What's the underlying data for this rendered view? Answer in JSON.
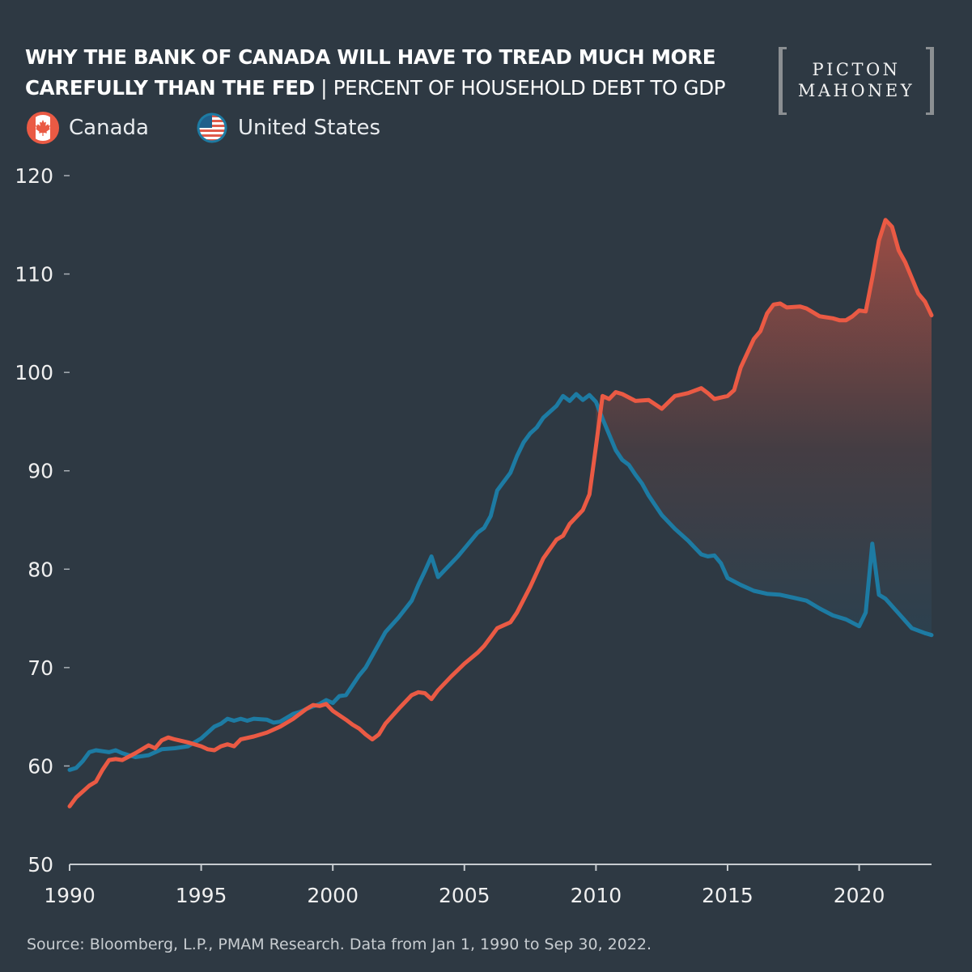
{
  "header": {
    "title_bold_1": "WHY THE BANK OF CANADA WILL HAVE TO TREAD MUCH MORE",
    "title_bold_2": "CAREFULLY THAN THE FED",
    "title_separator": " | ",
    "subtitle": "PERCENT OF HOUSEHOLD DEBT TO GDP"
  },
  "logo": {
    "line1": "PICTON",
    "line2": "MAHONEY"
  },
  "legend": [
    {
      "label": "Canada",
      "icon": "canada-flag-icon",
      "color": "#ea5a44"
    },
    {
      "label": "United States",
      "icon": "us-flag-icon",
      "color": "#1d7ba3"
    }
  ],
  "source": "Source: Bloomberg, L.P., PMAM Research. Data from Jan 1, 1990 to Sep 30, 2022.",
  "colors": {
    "background": "#2e3943",
    "canada": "#ea5a44",
    "us": "#1d7ba3"
  },
  "chart_data": {
    "type": "line",
    "title": "",
    "xlabel": "",
    "ylabel": "",
    "xlim": [
      1990,
      2022.75
    ],
    "ylim": [
      50,
      120
    ],
    "x_ticks": [
      1990,
      1995,
      2000,
      2005,
      2010,
      2015,
      2020
    ],
    "y_ticks": [
      50,
      60,
      70,
      80,
      90,
      100,
      110,
      120
    ],
    "grid": false,
    "legend_position": "top-left",
    "shaded_gap": {
      "from": 2010,
      "to": 2022.75,
      "description": "area between Canada and US lines"
    },
    "series": [
      {
        "name": "Canada",
        "color": "#ea5a44",
        "points": [
          [
            1990.0,
            55.9
          ],
          [
            1990.25,
            56.8
          ],
          [
            1990.5,
            57.4
          ],
          [
            1990.75,
            58.0
          ],
          [
            1991.0,
            58.4
          ],
          [
            1991.25,
            59.6
          ],
          [
            1991.5,
            60.6
          ],
          [
            1991.75,
            60.7
          ],
          [
            1992.0,
            60.6
          ],
          [
            1992.5,
            61.3
          ],
          [
            1993.0,
            62.1
          ],
          [
            1993.25,
            61.8
          ],
          [
            1993.5,
            62.6
          ],
          [
            1993.75,
            62.9
          ],
          [
            1994.0,
            62.7
          ],
          [
            1994.5,
            62.4
          ],
          [
            1995.0,
            62.0
          ],
          [
            1995.25,
            61.7
          ],
          [
            1995.5,
            61.6
          ],
          [
            1995.75,
            62.0
          ],
          [
            1996.0,
            62.2
          ],
          [
            1996.25,
            62.0
          ],
          [
            1996.5,
            62.7
          ],
          [
            1997.0,
            63.0
          ],
          [
            1997.5,
            63.4
          ],
          [
            1998.0,
            64.0
          ],
          [
            1998.5,
            64.8
          ],
          [
            1999.0,
            65.8
          ],
          [
            1999.25,
            66.2
          ],
          [
            1999.5,
            66.1
          ],
          [
            1999.75,
            66.3
          ],
          [
            2000.0,
            65.6
          ],
          [
            2000.5,
            64.7
          ],
          [
            2000.75,
            64.2
          ],
          [
            2001.0,
            63.8
          ],
          [
            2001.25,
            63.2
          ],
          [
            2001.5,
            62.7
          ],
          [
            2001.75,
            63.2
          ],
          [
            2002.0,
            64.3
          ],
          [
            2002.5,
            65.8
          ],
          [
            2003.0,
            67.2
          ],
          [
            2003.25,
            67.5
          ],
          [
            2003.5,
            67.4
          ],
          [
            2003.75,
            66.8
          ],
          [
            2004.0,
            67.7
          ],
          [
            2004.5,
            69.1
          ],
          [
            2005.0,
            70.4
          ],
          [
            2005.5,
            71.5
          ],
          [
            2005.75,
            72.2
          ],
          [
            2006.0,
            73.1
          ],
          [
            2006.25,
            74.0
          ],
          [
            2006.75,
            74.6
          ],
          [
            2007.0,
            75.6
          ],
          [
            2007.5,
            78.2
          ],
          [
            2008.0,
            81.1
          ],
          [
            2008.5,
            83.0
          ],
          [
            2008.75,
            83.4
          ],
          [
            2009.0,
            84.6
          ],
          [
            2009.5,
            86.0
          ],
          [
            2009.75,
            87.6
          ],
          [
            2010.0,
            92.5
          ],
          [
            2010.25,
            97.6
          ],
          [
            2010.5,
            97.3
          ],
          [
            2010.75,
            98.0
          ],
          [
            2011.0,
            97.8
          ],
          [
            2011.5,
            97.1
          ],
          [
            2012.0,
            97.2
          ],
          [
            2012.5,
            96.3
          ],
          [
            2013.0,
            97.6
          ],
          [
            2013.5,
            97.9
          ],
          [
            2014.0,
            98.4
          ],
          [
            2014.25,
            97.9
          ],
          [
            2014.5,
            97.3
          ],
          [
            2015.0,
            97.6
          ],
          [
            2015.25,
            98.2
          ],
          [
            2015.5,
            100.5
          ],
          [
            2016.0,
            103.4
          ],
          [
            2016.25,
            104.2
          ],
          [
            2016.5,
            106.0
          ],
          [
            2016.75,
            106.9
          ],
          [
            2017.0,
            107.0
          ],
          [
            2017.25,
            106.6
          ],
          [
            2017.75,
            106.7
          ],
          [
            2018.0,
            106.5
          ],
          [
            2018.5,
            105.7
          ],
          [
            2019.0,
            105.5
          ],
          [
            2019.25,
            105.3
          ],
          [
            2019.5,
            105.3
          ],
          [
            2019.75,
            105.7
          ],
          [
            2020.0,
            106.3
          ],
          [
            2020.25,
            106.2
          ],
          [
            2020.5,
            109.6
          ],
          [
            2020.75,
            113.4
          ],
          [
            2021.0,
            115.5
          ],
          [
            2021.25,
            114.8
          ],
          [
            2021.5,
            112.4
          ],
          [
            2021.75,
            111.2
          ],
          [
            2022.0,
            109.6
          ],
          [
            2022.25,
            108.0
          ],
          [
            2022.5,
            107.2
          ],
          [
            2022.75,
            105.8
          ]
        ]
      },
      {
        "name": "United States",
        "color": "#1d7ba3",
        "points": [
          [
            1990.0,
            59.6
          ],
          [
            1990.25,
            59.8
          ],
          [
            1990.5,
            60.5
          ],
          [
            1990.75,
            61.4
          ],
          [
            1991.0,
            61.6
          ],
          [
            1991.5,
            61.4
          ],
          [
            1991.75,
            61.6
          ],
          [
            1992.0,
            61.3
          ],
          [
            1992.5,
            60.9
          ],
          [
            1993.0,
            61.1
          ],
          [
            1993.5,
            61.7
          ],
          [
            1994.0,
            61.8
          ],
          [
            1994.5,
            62.0
          ],
          [
            1995.0,
            62.8
          ],
          [
            1995.25,
            63.4
          ],
          [
            1995.5,
            64.0
          ],
          [
            1995.75,
            64.3
          ],
          [
            1996.0,
            64.8
          ],
          [
            1996.25,
            64.6
          ],
          [
            1996.5,
            64.8
          ],
          [
            1996.75,
            64.6
          ],
          [
            1997.0,
            64.8
          ],
          [
            1997.5,
            64.7
          ],
          [
            1997.75,
            64.4
          ],
          [
            1998.0,
            64.5
          ],
          [
            1998.5,
            65.3
          ],
          [
            1998.75,
            65.5
          ],
          [
            1999.0,
            65.8
          ],
          [
            1999.5,
            66.3
          ],
          [
            1999.75,
            66.7
          ],
          [
            2000.0,
            66.4
          ],
          [
            2000.25,
            67.1
          ],
          [
            2000.5,
            67.2
          ],
          [
            2000.75,
            68.2
          ],
          [
            2001.0,
            69.2
          ],
          [
            2001.25,
            70.0
          ],
          [
            2001.75,
            72.4
          ],
          [
            2002.0,
            73.6
          ],
          [
            2002.5,
            75.1
          ],
          [
            2003.0,
            76.8
          ],
          [
            2003.25,
            78.4
          ],
          [
            2003.5,
            79.8
          ],
          [
            2003.75,
            81.3
          ],
          [
            2004.0,
            79.2
          ],
          [
            2004.25,
            79.9
          ],
          [
            2004.75,
            81.3
          ],
          [
            2005.0,
            82.1
          ],
          [
            2005.5,
            83.7
          ],
          [
            2005.75,
            84.2
          ],
          [
            2006.0,
            85.4
          ],
          [
            2006.25,
            88.0
          ],
          [
            2006.75,
            89.8
          ],
          [
            2007.0,
            91.5
          ],
          [
            2007.25,
            92.9
          ],
          [
            2007.5,
            93.8
          ],
          [
            2007.75,
            94.4
          ],
          [
            2008.0,
            95.4
          ],
          [
            2008.5,
            96.6
          ],
          [
            2008.75,
            97.6
          ],
          [
            2009.0,
            97.1
          ],
          [
            2009.25,
            97.8
          ],
          [
            2009.5,
            97.2
          ],
          [
            2009.75,
            97.7
          ],
          [
            2010.0,
            97.0
          ],
          [
            2010.25,
            95.3
          ],
          [
            2010.75,
            92.1
          ],
          [
            2011.0,
            91.1
          ],
          [
            2011.25,
            90.6
          ],
          [
            2011.5,
            89.6
          ],
          [
            2011.75,
            88.7
          ],
          [
            2012.0,
            87.5
          ],
          [
            2012.5,
            85.5
          ],
          [
            2013.0,
            84.1
          ],
          [
            2013.5,
            82.9
          ],
          [
            2013.75,
            82.2
          ],
          [
            2014.0,
            81.5
          ],
          [
            2014.25,
            81.3
          ],
          [
            2014.5,
            81.4
          ],
          [
            2014.75,
            80.6
          ],
          [
            2015.0,
            79.1
          ],
          [
            2015.5,
            78.4
          ],
          [
            2016.0,
            77.8
          ],
          [
            2016.5,
            77.5
          ],
          [
            2017.0,
            77.4
          ],
          [
            2017.5,
            77.1
          ],
          [
            2018.0,
            76.8
          ],
          [
            2018.5,
            76.0
          ],
          [
            2019.0,
            75.3
          ],
          [
            2019.5,
            74.9
          ],
          [
            2020.0,
            74.2
          ],
          [
            2020.25,
            75.6
          ],
          [
            2020.5,
            82.6
          ],
          [
            2020.75,
            77.4
          ],
          [
            2021.0,
            77.0
          ],
          [
            2021.5,
            75.5
          ],
          [
            2022.0,
            74.0
          ],
          [
            2022.5,
            73.5
          ],
          [
            2022.75,
            73.3
          ]
        ]
      }
    ]
  }
}
